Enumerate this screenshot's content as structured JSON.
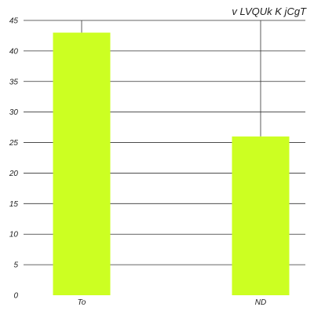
{
  "chart_data": {
    "type": "bar",
    "title": "v LVQUk K jCgT",
    "categories": [
      "To",
      "ND"
    ],
    "values": [
      43,
      26
    ],
    "ylim": [
      0,
      45
    ],
    "yticks": [
      0,
      5,
      10,
      15,
      20,
      25,
      30,
      35,
      40,
      45
    ],
    "grid": "horizontal",
    "bar_color": "#ccff22",
    "grid_color": "#333333"
  }
}
